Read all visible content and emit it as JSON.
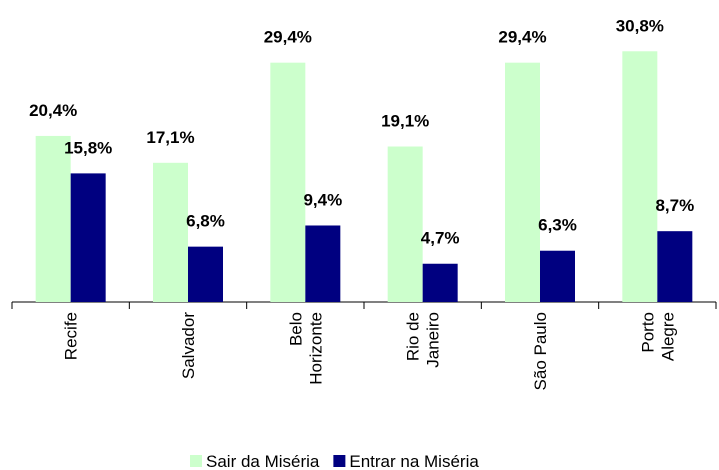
{
  "chart_data": {
    "type": "bar",
    "categories": [
      "Recife",
      "Salvador",
      "Belo\nHorizonte",
      "Rio de\nJaneiro",
      "São Paulo",
      "Porto\nAlegre"
    ],
    "series": [
      {
        "name": "Sair da Miséria",
        "color": "#ccffcc",
        "values": [
          20.4,
          17.1,
          29.4,
          19.1,
          29.4,
          30.8
        ],
        "value_labels": [
          "20,4%",
          "17,1%",
          "29,4%",
          "19,1%",
          "29,4%",
          "30,8%"
        ]
      },
      {
        "name": "Entrar na Miséria",
        "color": "#000080",
        "values": [
          15.8,
          6.8,
          9.4,
          4.7,
          6.3,
          8.7
        ],
        "value_labels": [
          "15,8%",
          "6,8%",
          "9,4%",
          "4,7%",
          "6,3%",
          "8,7%"
        ]
      }
    ],
    "legend": "bottom"
  }
}
